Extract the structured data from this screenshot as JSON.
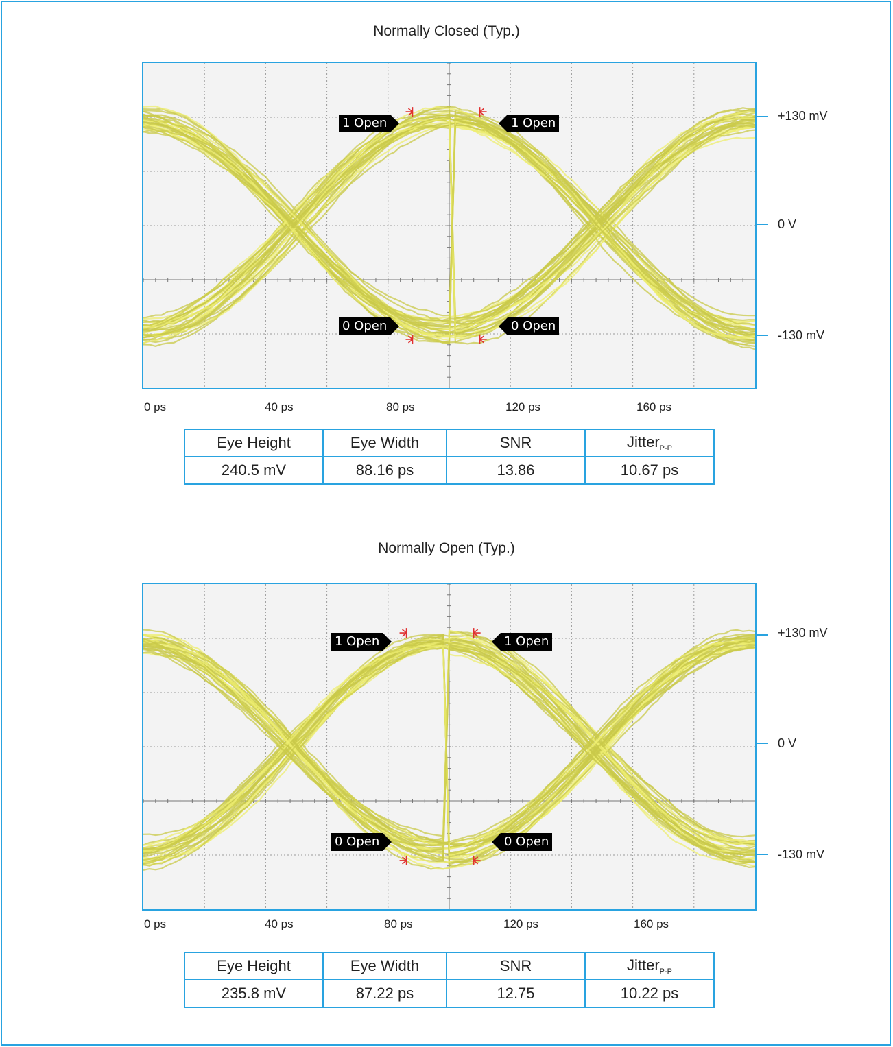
{
  "colors": {
    "frame": "#29a3e0",
    "trace": "#c9c94a",
    "trace_bright": "#eeee70",
    "marker": "#e03030"
  },
  "charts": [
    {
      "title": "Normally Closed (Typ.)",
      "y_labels": [
        "+130 mV",
        "0 V",
        "-130 mV"
      ],
      "x_labels": [
        "0 ps",
        "40 ps",
        "80 ps",
        "120 ps",
        "160 ps"
      ],
      "markers": {
        "one_open": "1 Open",
        "zero_open": "0 Open"
      },
      "table": {
        "headers": [
          "Eye Height",
          "Eye Width",
          "SNR",
          "Jitter"
        ],
        "jitter_sub": "P-P",
        "values": [
          "240.5 mV",
          "88.16 ps",
          "13.86",
          "10.67 ps"
        ]
      }
    },
    {
      "title": "Normally Open (Typ.)",
      "y_labels": [
        "+130 mV",
        "0 V",
        "-130 mV"
      ],
      "x_labels": [
        "0 ps",
        "40 ps",
        "80 ps",
        "120 ps",
        "160 ps"
      ],
      "markers": {
        "one_open": "1 Open",
        "zero_open": "0 Open"
      },
      "table": {
        "headers": [
          "Eye Height",
          "Eye Width",
          "SNR",
          "Jitter"
        ],
        "jitter_sub": "P-P",
        "values": [
          "235.8 mV",
          "87.22 ps",
          "12.75",
          "10.22 ps"
        ]
      }
    }
  ],
  "chart_data": [
    {
      "type": "line",
      "title": "Normally Closed (Typ.)",
      "xlabel": "",
      "ylabel": "",
      "x_ticks": [
        "0 ps",
        "40 ps",
        "80 ps",
        "120 ps",
        "160 ps"
      ],
      "y_ticks": [
        "+130 mV",
        "0 V",
        "-130 mV"
      ],
      "xlim": [
        0,
        200
      ],
      "ylim_mV": [
        -200,
        200
      ],
      "grid": true,
      "eye_crossings_ps": [
        50,
        150
      ],
      "series": [
        {
          "x": [
            0,
            50,
            100,
            150,
            200
          ],
          "y": [
            130,
            0,
            -130,
            0,
            130
          ]
        },
        {
          "x": [
            0,
            50,
            100,
            150,
            200
          ],
          "y": [
            -130,
            0,
            130,
            0,
            -130
          ]
        }
      ],
      "eye_height_mV": 240.5,
      "eye_width_ps": 88.16,
      "snr": 13.86,
      "jitter_pp_ps": 10.67
    },
    {
      "type": "line",
      "title": "Normally Open (Typ.)",
      "xlabel": "",
      "ylabel": "",
      "x_ticks": [
        "0 ps",
        "40 ps",
        "80 ps",
        "120 ps",
        "160 ps"
      ],
      "y_ticks": [
        "+130 mV",
        "0 V",
        "-130 mV"
      ],
      "xlim": [
        0,
        200
      ],
      "ylim_mV": [
        -200,
        200
      ],
      "grid": true,
      "eye_crossings_ps": [
        48,
        148
      ],
      "series": [
        {
          "x": [
            0,
            48,
            98,
            148,
            200
          ],
          "y": [
            130,
            0,
            -130,
            0,
            130
          ]
        },
        {
          "x": [
            0,
            48,
            98,
            148,
            200
          ],
          "y": [
            -130,
            0,
            130,
            0,
            -130
          ]
        }
      ],
      "eye_height_mV": 235.8,
      "eye_width_ps": 87.22,
      "snr": 12.75,
      "jitter_pp_ps": 10.22
    }
  ]
}
